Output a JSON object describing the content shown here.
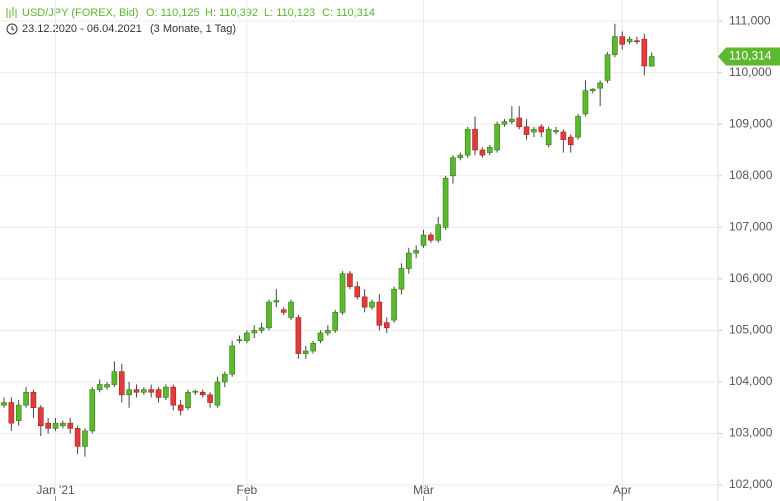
{
  "header": {
    "instrument": "USD/JPY (FOREX, Bid)",
    "open": "O: 110,125",
    "high": "H: 110,392",
    "low": "L: 110,123",
    "close": "C: 110,314",
    "range": "23.12.2020 - 06.04.2021",
    "period": "(3 Monate, 1 Tag)"
  },
  "chart_data": {
    "type": "candlestick",
    "categories": [
      null,
      null,
      null,
      null,
      null,
      null,
      null,
      "Jan '21",
      null,
      null,
      null,
      null,
      null,
      null,
      null,
      null,
      null,
      null,
      null,
      null,
      null,
      null,
      null,
      null,
      null,
      null,
      null,
      null,
      null,
      null,
      null,
      null,
      null,
      "Feb",
      null,
      null,
      null,
      null,
      null,
      null,
      null,
      null,
      null,
      null,
      null,
      null,
      null,
      null,
      null,
      null,
      null,
      null,
      null,
      null,
      null,
      null,
      null,
      "Mär",
      null,
      null,
      null,
      null,
      null,
      null,
      null,
      null,
      null,
      null,
      null,
      null,
      null,
      null,
      null,
      null,
      null,
      null,
      null,
      null,
      null,
      null,
      null,
      null,
      null,
      null,
      "Apr",
      null,
      null,
      null,
      null
    ],
    "open": [
      103.55,
      103.6,
      103.25,
      103.55,
      103.8,
      103.5,
      103.2,
      103.1,
      103.15,
      103.2,
      103.1,
      102.75,
      103.05,
      103.85,
      103.9,
      103.95,
      104.2,
      103.75,
      103.85,
      103.8,
      103.85,
      103.85,
      103.7,
      103.9,
      103.55,
      103.5,
      103.8,
      103.8,
      103.75,
      103.55,
      104.0,
      104.15,
      104.8,
      104.8,
      104.95,
      105.0,
      105.05,
      105.55,
      105.4,
      105.25,
      105.25,
      104.55,
      104.6,
      104.8,
      104.95,
      105.0,
      105.35,
      106.1,
      105.85,
      105.65,
      105.45,
      105.55,
      105.15,
      105.2,
      105.8,
      106.2,
      106.5,
      106.65,
      106.85,
      106.75,
      107.0,
      108.0,
      108.35,
      108.4,
      108.9,
      108.5,
      108.45,
      108.5,
      109.0,
      109.05,
      109.12,
      108.95,
      108.85,
      108.95,
      108.6,
      108.85,
      108.85,
      108.75,
      108.75,
      109.2,
      109.65,
      109.7,
      109.85,
      110.35,
      110.7,
      110.6,
      110.62,
      110.65,
      110.125
    ],
    "high": [
      103.7,
      103.7,
      103.65,
      103.9,
      103.85,
      103.55,
      103.3,
      103.3,
      103.25,
      103.3,
      103.15,
      103.1,
      103.9,
      104.05,
      104.0,
      104.4,
      104.35,
      104.0,
      103.95,
      103.9,
      103.95,
      103.9,
      103.95,
      103.95,
      103.65,
      103.85,
      103.85,
      103.85,
      103.8,
      104.1,
      104.2,
      104.8,
      104.9,
      105.0,
      105.1,
      105.15,
      105.6,
      105.8,
      105.45,
      105.6,
      105.3,
      104.7,
      104.8,
      105.0,
      105.1,
      105.4,
      106.15,
      106.15,
      105.95,
      105.8,
      105.6,
      105.7,
      105.25,
      105.85,
      106.3,
      106.6,
      106.65,
      106.95,
      106.9,
      107.2,
      108.0,
      108.4,
      108.45,
      108.95,
      109.15,
      108.55,
      108.6,
      109.05,
      109.1,
      109.35,
      109.35,
      109.1,
      108.95,
      109.0,
      108.95,
      108.95,
      108.9,
      108.8,
      109.2,
      109.85,
      109.7,
      109.85,
      110.4,
      110.95,
      110.8,
      110.7,
      110.7,
      110.75,
      110.392
    ],
    "low": [
      103.5,
      103.05,
      103.15,
      103.5,
      103.3,
      102.95,
      103.0,
      103.05,
      103.1,
      103.0,
      102.6,
      102.55,
      103.0,
      103.8,
      103.85,
      103.9,
      103.6,
      103.5,
      103.7,
      103.75,
      103.7,
      103.6,
      103.65,
      103.45,
      103.35,
      103.45,
      103.75,
      103.7,
      103.5,
      103.5,
      103.9,
      104.1,
      104.75,
      104.75,
      104.85,
      104.95,
      105.0,
      105.45,
      105.3,
      105.2,
      104.45,
      104.45,
      104.55,
      104.75,
      104.9,
      104.95,
      105.3,
      105.8,
      105.6,
      105.35,
      105.4,
      105.0,
      104.95,
      105.15,
      105.7,
      106.1,
      106.4,
      106.6,
      106.7,
      106.7,
      106.95,
      107.85,
      108.3,
      108.35,
      108.4,
      108.35,
      108.4,
      108.45,
      108.95,
      109.0,
      108.9,
      108.7,
      108.75,
      108.75,
      108.55,
      108.8,
      108.45,
      108.45,
      108.7,
      109.15,
      109.6,
      109.35,
      109.8,
      110.3,
      110.45,
      110.55,
      110.55,
      109.95,
      110.123
    ],
    "close": [
      103.6,
      103.2,
      103.55,
      103.8,
      103.5,
      103.15,
      103.1,
      103.2,
      103.2,
      103.1,
      102.75,
      103.05,
      103.85,
      103.95,
      103.95,
      104.2,
      103.75,
      103.85,
      103.8,
      103.85,
      103.8,
      103.7,
      103.9,
      103.55,
      103.45,
      103.8,
      103.82,
      103.75,
      103.6,
      104.0,
      104.15,
      104.7,
      104.82,
      104.95,
      105.0,
      105.05,
      105.55,
      105.58,
      105.35,
      105.55,
      104.55,
      104.6,
      104.75,
      104.95,
      105.0,
      105.35,
      106.1,
      105.85,
      105.65,
      105.45,
      105.55,
      105.1,
      105.05,
      105.8,
      106.2,
      106.5,
      106.55,
      106.85,
      106.75,
      107.05,
      107.95,
      108.35,
      108.4,
      108.9,
      108.5,
      108.4,
      108.55,
      109.0,
      109.05,
      109.1,
      108.95,
      108.8,
      108.9,
      108.85,
      108.9,
      108.88,
      108.7,
      108.6,
      109.15,
      109.65,
      109.68,
      109.8,
      110.35,
      110.7,
      110.55,
      110.65,
      110.6,
      110.13,
      110.314
    ],
    "up_color": "#5cb82e",
    "down_color": "#e03c3c",
    "last_price": {
      "value": 110.314,
      "label": "110,314"
    },
    "ylim": [
      101.69,
      111.41
    ],
    "yticks": [
      {
        "value": 102,
        "label": "102,000"
      },
      {
        "value": 103,
        "label": "103,000"
      },
      {
        "value": 104,
        "label": "104,000"
      },
      {
        "value": 105,
        "label": "105,000"
      },
      {
        "value": 106,
        "label": "106,000"
      },
      {
        "value": 107,
        "label": "107,000"
      },
      {
        "value": 108,
        "label": "108,000"
      },
      {
        "value": 109,
        "label": "109,000"
      },
      {
        "value": 110,
        "label": "110,000"
      },
      {
        "value": 111,
        "label": "111,000"
      }
    ],
    "grid": true
  }
}
